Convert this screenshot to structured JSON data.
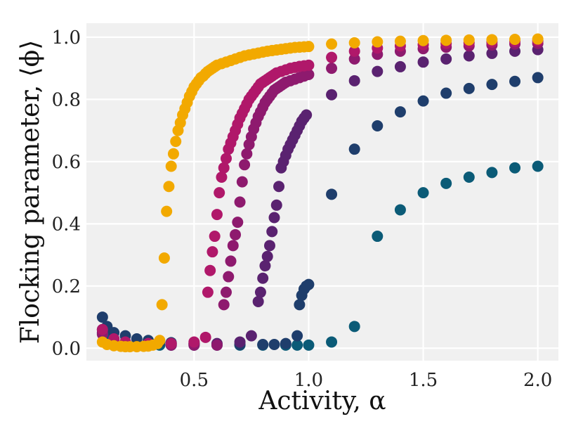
{
  "chart_data": {
    "type": "scatter",
    "title": "",
    "xlabel": "Activity, α",
    "ylabel": "Flocking parameter, ⟨ϕ⟩",
    "xlim": [
      0.03,
      2.09
    ],
    "ylim": [
      -0.04,
      1.045
    ],
    "grid": true,
    "x_ticks": [
      0.5,
      1.0,
      1.5,
      2.0
    ],
    "x_tick_labels": [
      "0.5",
      "1.0",
      "1.5",
      "2.0"
    ],
    "y_ticks": [
      0.0,
      0.2,
      0.4,
      0.6,
      0.8,
      1.0
    ],
    "y_tick_labels": [
      "0.0",
      "0.2",
      "0.4",
      "0.6",
      "0.8",
      "1.0"
    ],
    "series": [
      {
        "name": "teal",
        "color": "#0b5b77",
        "points": [
          [
            0.1,
            0.06
          ],
          [
            0.12,
            0.04
          ],
          [
            0.15,
            0.03
          ],
          [
            0.2,
            0.02
          ],
          [
            0.25,
            0.015
          ],
          [
            0.3,
            0.012
          ],
          [
            0.35,
            0.01
          ],
          [
            0.4,
            0.01
          ],
          [
            0.5,
            0.01
          ],
          [
            0.6,
            0.01
          ],
          [
            0.7,
            0.01
          ],
          [
            0.8,
            0.01
          ],
          [
            0.9,
            0.01
          ],
          [
            0.95,
            0.01
          ],
          [
            1.0,
            0.01
          ],
          [
            1.1,
            0.02
          ],
          [
            1.2,
            0.07
          ],
          [
            1.3,
            0.36
          ],
          [
            1.4,
            0.445
          ],
          [
            1.5,
            0.5
          ],
          [
            1.6,
            0.53
          ],
          [
            1.7,
            0.55
          ],
          [
            1.8,
            0.565
          ],
          [
            1.9,
            0.58
          ],
          [
            2.0,
            0.585
          ]
        ]
      },
      {
        "name": "dark blue",
        "color": "#1f3e6c",
        "points": [
          [
            0.1,
            0.1
          ],
          [
            0.12,
            0.07
          ],
          [
            0.15,
            0.05
          ],
          [
            0.2,
            0.04
          ],
          [
            0.25,
            0.03
          ],
          [
            0.3,
            0.025
          ],
          [
            0.35,
            0.02
          ],
          [
            0.4,
            0.018
          ],
          [
            0.5,
            0.015
          ],
          [
            0.6,
            0.012
          ],
          [
            0.7,
            0.012
          ],
          [
            0.8,
            0.012
          ],
          [
            0.85,
            0.012
          ],
          [
            0.9,
            0.015
          ],
          [
            0.95,
            0.04
          ],
          [
            0.96,
            0.14
          ],
          [
            0.97,
            0.17
          ],
          [
            0.98,
            0.19
          ],
          [
            0.99,
            0.2
          ],
          [
            1.0,
            0.205
          ],
          [
            1.1,
            0.495
          ],
          [
            1.2,
            0.64
          ],
          [
            1.3,
            0.715
          ],
          [
            1.4,
            0.76
          ],
          [
            1.5,
            0.795
          ],
          [
            1.6,
            0.82
          ],
          [
            1.7,
            0.835
          ],
          [
            1.8,
            0.848
          ],
          [
            1.9,
            0.858
          ],
          [
            2.0,
            0.87
          ]
        ]
      },
      {
        "name": "dark purple",
        "color": "#5a2270",
        "points": [
          [
            0.1,
            0.05
          ],
          [
            0.15,
            0.03
          ],
          [
            0.2,
            0.02
          ],
          [
            0.3,
            0.015
          ],
          [
            0.4,
            0.015
          ],
          [
            0.5,
            0.015
          ],
          [
            0.6,
            0.015
          ],
          [
            0.7,
            0.02
          ],
          [
            0.75,
            0.04
          ],
          [
            0.78,
            0.15
          ],
          [
            0.79,
            0.18
          ],
          [
            0.8,
            0.225
          ],
          [
            0.81,
            0.265
          ],
          [
            0.82,
            0.295
          ],
          [
            0.83,
            0.33
          ],
          [
            0.84,
            0.375
          ],
          [
            0.85,
            0.42
          ],
          [
            0.86,
            0.46
          ],
          [
            0.87,
            0.52
          ],
          [
            0.88,
            0.58
          ],
          [
            0.89,
            0.6
          ],
          [
            0.9,
            0.62
          ],
          [
            0.91,
            0.64
          ],
          [
            0.92,
            0.655
          ],
          [
            0.93,
            0.67
          ],
          [
            0.94,
            0.685
          ],
          [
            0.95,
            0.7
          ],
          [
            0.96,
            0.715
          ],
          [
            0.97,
            0.73
          ],
          [
            0.98,
            0.74
          ],
          [
            0.99,
            0.75
          ],
          [
            1.1,
            0.815
          ],
          [
            1.2,
            0.86
          ],
          [
            1.3,
            0.89
          ],
          [
            1.4,
            0.905
          ],
          [
            1.5,
            0.92
          ],
          [
            1.6,
            0.93
          ],
          [
            1.7,
            0.94
          ],
          [
            1.8,
            0.948
          ],
          [
            1.9,
            0.955
          ],
          [
            2.0,
            0.96
          ]
        ]
      },
      {
        "name": "plum",
        "color": "#8e1a6e",
        "points": [
          [
            0.1,
            0.045
          ],
          [
            0.15,
            0.025
          ],
          [
            0.2,
            0.015
          ],
          [
            0.3,
            0.01
          ],
          [
            0.4,
            0.01
          ],
          [
            0.5,
            0.01
          ],
          [
            0.6,
            0.01
          ],
          [
            0.63,
            0.14
          ],
          [
            0.64,
            0.18
          ],
          [
            0.65,
            0.23
          ],
          [
            0.66,
            0.28
          ],
          [
            0.67,
            0.33
          ],
          [
            0.68,
            0.365
          ],
          [
            0.69,
            0.405
          ],
          [
            0.7,
            0.47
          ],
          [
            0.71,
            0.535
          ],
          [
            0.72,
            0.59
          ],
          [
            0.73,
            0.625
          ],
          [
            0.74,
            0.655
          ],
          [
            0.75,
            0.68
          ],
          [
            0.76,
            0.705
          ],
          [
            0.77,
            0.725
          ],
          [
            0.78,
            0.745
          ],
          [
            0.79,
            0.76
          ],
          [
            0.8,
            0.775
          ],
          [
            0.81,
            0.79
          ],
          [
            0.82,
            0.8
          ],
          [
            0.83,
            0.81
          ],
          [
            0.84,
            0.82
          ],
          [
            0.85,
            0.83
          ],
          [
            0.86,
            0.835
          ],
          [
            0.87,
            0.84
          ],
          [
            0.88,
            0.845
          ],
          [
            0.89,
            0.85
          ],
          [
            0.9,
            0.855
          ],
          [
            0.92,
            0.86
          ],
          [
            0.94,
            0.865
          ],
          [
            0.96,
            0.87
          ],
          [
            0.98,
            0.875
          ],
          [
            1.0,
            0.88
          ],
          [
            1.1,
            0.9
          ],
          [
            1.2,
            0.93
          ],
          [
            1.3,
            0.945
          ],
          [
            1.4,
            0.955
          ],
          [
            1.5,
            0.963
          ],
          [
            1.6,
            0.968
          ],
          [
            1.7,
            0.972
          ],
          [
            1.8,
            0.975
          ],
          [
            1.9,
            0.978
          ],
          [
            2.0,
            0.98
          ]
        ]
      },
      {
        "name": "magenta",
        "color": "#b0186a",
        "points": [
          [
            0.1,
            0.06
          ],
          [
            0.15,
            0.03
          ],
          [
            0.2,
            0.02
          ],
          [
            0.3,
            0.015
          ],
          [
            0.4,
            0.015
          ],
          [
            0.5,
            0.02
          ],
          [
            0.55,
            0.035
          ],
          [
            0.56,
            0.18
          ],
          [
            0.57,
            0.25
          ],
          [
            0.58,
            0.31
          ],
          [
            0.59,
            0.36
          ],
          [
            0.6,
            0.43
          ],
          [
            0.61,
            0.5
          ],
          [
            0.62,
            0.55
          ],
          [
            0.63,
            0.58
          ],
          [
            0.64,
            0.61
          ],
          [
            0.65,
            0.64
          ],
          [
            0.66,
            0.66
          ],
          [
            0.67,
            0.68
          ],
          [
            0.68,
            0.7
          ],
          [
            0.69,
            0.72
          ],
          [
            0.7,
            0.74
          ],
          [
            0.71,
            0.755
          ],
          [
            0.72,
            0.77
          ],
          [
            0.73,
            0.785
          ],
          [
            0.74,
            0.8
          ],
          [
            0.75,
            0.81
          ],
          [
            0.76,
            0.82
          ],
          [
            0.77,
            0.83
          ],
          [
            0.78,
            0.84
          ],
          [
            0.79,
            0.85
          ],
          [
            0.8,
            0.855
          ],
          [
            0.81,
            0.86
          ],
          [
            0.82,
            0.865
          ],
          [
            0.83,
            0.87
          ],
          [
            0.84,
            0.875
          ],
          [
            0.85,
            0.88
          ],
          [
            0.86,
            0.885
          ],
          [
            0.88,
            0.89
          ],
          [
            0.9,
            0.895
          ],
          [
            0.92,
            0.9
          ],
          [
            0.94,
            0.903
          ],
          [
            0.96,
            0.906
          ],
          [
            0.98,
            0.908
          ],
          [
            1.0,
            0.91
          ],
          [
            1.1,
            0.935
          ],
          [
            1.2,
            0.955
          ],
          [
            1.3,
            0.965
          ],
          [
            1.4,
            0.972
          ],
          [
            1.5,
            0.976
          ],
          [
            1.6,
            0.98
          ],
          [
            1.7,
            0.982
          ],
          [
            1.8,
            0.984
          ],
          [
            1.9,
            0.986
          ],
          [
            2.0,
            0.988
          ]
        ]
      },
      {
        "name": "gold",
        "color": "#f2a900",
        "points": [
          [
            0.1,
            0.02
          ],
          [
            0.12,
            0.012
          ],
          [
            0.15,
            0.008
          ],
          [
            0.18,
            0.006
          ],
          [
            0.2,
            0.005
          ],
          [
            0.22,
            0.005
          ],
          [
            0.25,
            0.005
          ],
          [
            0.28,
            0.006
          ],
          [
            0.3,
            0.007
          ],
          [
            0.32,
            0.01
          ],
          [
            0.34,
            0.015
          ],
          [
            0.35,
            0.025
          ],
          [
            0.36,
            0.14
          ],
          [
            0.37,
            0.29
          ],
          [
            0.38,
            0.44
          ],
          [
            0.39,
            0.52
          ],
          [
            0.4,
            0.585
          ],
          [
            0.41,
            0.625
          ],
          [
            0.42,
            0.665
          ],
          [
            0.43,
            0.7
          ],
          [
            0.44,
            0.725
          ],
          [
            0.45,
            0.75
          ],
          [
            0.46,
            0.77
          ],
          [
            0.47,
            0.79
          ],
          [
            0.48,
            0.81
          ],
          [
            0.49,
            0.825
          ],
          [
            0.5,
            0.84
          ],
          [
            0.51,
            0.85
          ],
          [
            0.52,
            0.86
          ],
          [
            0.53,
            0.87
          ],
          [
            0.54,
            0.875
          ],
          [
            0.55,
            0.883
          ],
          [
            0.56,
            0.89
          ],
          [
            0.57,
            0.895
          ],
          [
            0.58,
            0.9
          ],
          [
            0.59,
            0.905
          ],
          [
            0.6,
            0.91
          ],
          [
            0.62,
            0.915
          ],
          [
            0.64,
            0.92
          ],
          [
            0.66,
            0.925
          ],
          [
            0.68,
            0.93
          ],
          [
            0.7,
            0.935
          ],
          [
            0.72,
            0.94
          ],
          [
            0.74,
            0.943
          ],
          [
            0.76,
            0.946
          ],
          [
            0.78,
            0.949
          ],
          [
            0.8,
            0.952
          ],
          [
            0.82,
            0.955
          ],
          [
            0.84,
            0.957
          ],
          [
            0.86,
            0.959
          ],
          [
            0.88,
            0.961
          ],
          [
            0.9,
            0.963
          ],
          [
            0.92,
            0.965
          ],
          [
            0.94,
            0.967
          ],
          [
            0.96,
            0.968
          ],
          [
            0.98,
            0.969
          ],
          [
            1.0,
            0.97
          ],
          [
            1.1,
            0.978
          ],
          [
            1.2,
            0.982
          ],
          [
            1.3,
            0.985
          ],
          [
            1.4,
            0.987
          ],
          [
            1.5,
            0.989
          ],
          [
            1.6,
            0.99
          ],
          [
            1.7,
            0.991
          ],
          [
            1.8,
            0.992
          ],
          [
            1.9,
            0.993
          ],
          [
            2.0,
            0.994
          ]
        ]
      }
    ]
  }
}
